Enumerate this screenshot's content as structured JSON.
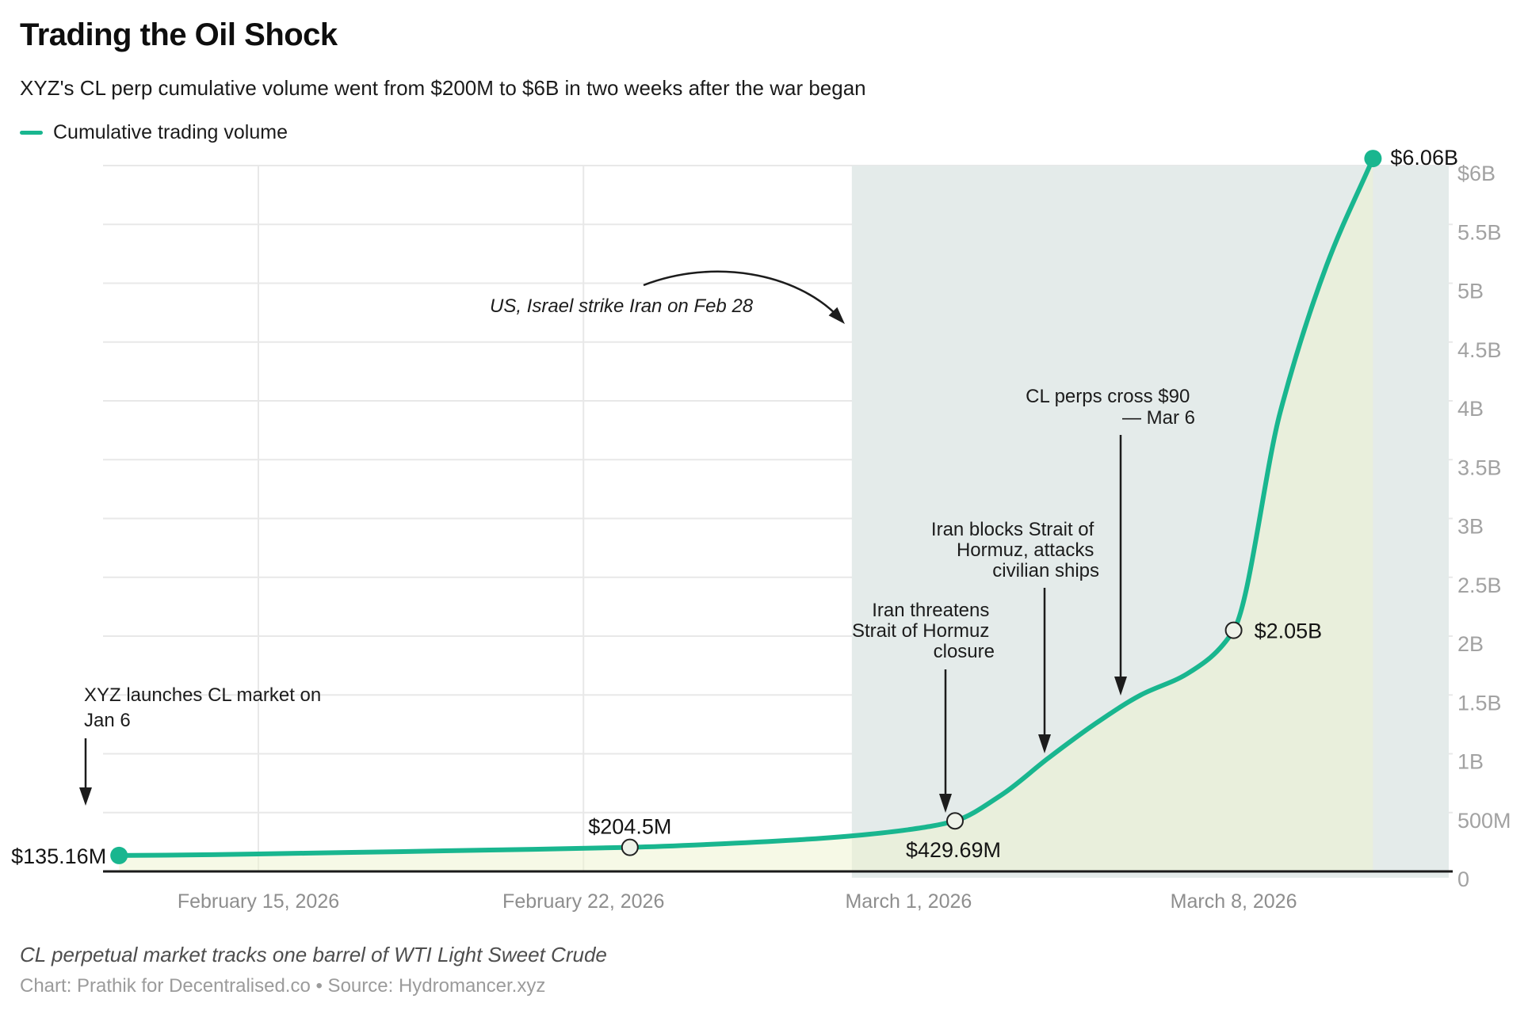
{
  "header": {
    "title": "Trading the Oil Shock",
    "subtitle": "XYZ's CL perp cumulative volume went from $200M to $6B in two weeks after the war began",
    "legend": {
      "label": "Cumulative trading volume"
    }
  },
  "chart_data": {
    "type": "line",
    "title": "Trading the Oil Shock",
    "xlabel": "",
    "ylabel": "",
    "grid": true,
    "legend_position": "top-left",
    "ylim": [
      0,
      6060000000
    ],
    "series": [
      {
        "name": "Cumulative trading volume",
        "color": "#19b68f",
        "points": [
          {
            "date": "2026-02-12",
            "value": 135160000
          },
          {
            "date": "2026-02-14",
            "value": 142000000
          },
          {
            "date": "2026-02-16",
            "value": 155000000
          },
          {
            "date": "2026-02-18",
            "value": 168000000
          },
          {
            "date": "2026-02-20",
            "value": 182000000
          },
          {
            "date": "2026-02-23",
            "value": 204500000
          },
          {
            "date": "2026-02-25",
            "value": 235000000
          },
          {
            "date": "2026-02-27",
            "value": 278000000
          },
          {
            "date": "2026-02-28",
            "value": 310000000
          },
          {
            "date": "2026-03-01",
            "value": 355000000
          },
          {
            "date": "2026-03-02",
            "value": 429690000
          },
          {
            "date": "2026-03-03",
            "value": 650000000
          },
          {
            "date": "2026-03-04",
            "value": 960000000
          },
          {
            "date": "2026-03-05",
            "value": 1250000000
          },
          {
            "date": "2026-03-06",
            "value": 1500000000
          },
          {
            "date": "2026-03-07",
            "value": 1680000000
          },
          {
            "date": "2026-03-08",
            "value": 2050000000
          },
          {
            "date": "2026-03-09",
            "value": 3900000000
          },
          {
            "date": "2026-03-10",
            "value": 5150000000
          },
          {
            "date": "2026-03-11",
            "value": 6060000000
          }
        ]
      }
    ],
    "x_ticks": [
      {
        "date": "2026-02-15",
        "label": "February 15, 2026"
      },
      {
        "date": "2026-02-22",
        "label": "February 22, 2026"
      },
      {
        "date": "2026-03-01",
        "label": "March 1, 2026"
      },
      {
        "date": "2026-03-08",
        "label": "March 8, 2026"
      }
    ],
    "y_ticks": [
      {
        "value": 6000000000,
        "label": "$6B"
      },
      {
        "value": 5500000000,
        "label": "5.5B"
      },
      {
        "value": 5000000000,
        "label": "5B"
      },
      {
        "value": 4500000000,
        "label": "4.5B"
      },
      {
        "value": 4000000000,
        "label": "4B"
      },
      {
        "value": 3500000000,
        "label": "3.5B"
      },
      {
        "value": 3000000000,
        "label": "3B"
      },
      {
        "value": 2500000000,
        "label": "2.5B"
      },
      {
        "value": 2000000000,
        "label": "2B"
      },
      {
        "value": 1500000000,
        "label": "1.5B"
      },
      {
        "value": 1000000000,
        "label": "1B"
      },
      {
        "value": 500000000,
        "label": "500M"
      },
      {
        "value": 0,
        "label": "0"
      }
    ],
    "shaded_region": {
      "start_date": "2026-02-28",
      "extends_to": "right edge of plot",
      "color": "#e4ebea"
    },
    "labeled_points": [
      {
        "date": "2026-02-12",
        "value": 135160000,
        "label": "$135.16M",
        "marker": "filled"
      },
      {
        "date": "2026-02-23",
        "value": 204500000,
        "label": "$204.5M",
        "marker": "open"
      },
      {
        "date": "2026-03-02",
        "value": 429690000,
        "label": "$429.69M",
        "marker": "open"
      },
      {
        "date": "2026-03-08",
        "value": 2050000000,
        "label": "$2.05B",
        "marker": "open"
      },
      {
        "date": "2026-03-11",
        "value": 6060000000,
        "label": "$6.06B",
        "marker": "filled"
      }
    ]
  },
  "annotations": {
    "xyz_launch": {
      "lines": [
        "XYZ launches CL market on",
        "Jan 6"
      ]
    },
    "us_israel_strike": {
      "text": "US, Israel strike Iran on Feb 28",
      "color": "#156a52"
    },
    "iran_threatens": {
      "lines": [
        "Iran threatens",
        "Strait of Hormuz",
        "closure"
      ]
    },
    "iran_blocks": {
      "lines": [
        "Iran blocks Strait of",
        "Hormuz, attacks",
        "civilian ships"
      ]
    },
    "cl_perps": {
      "lines": [
        "CL perps cross $90",
        "— Mar 6"
      ]
    }
  },
  "footer": {
    "note": "CL perpetual market tracks one barrel of WTI Light Sweet Crude",
    "credit": "Chart: Prathik for Decentralised.co • Source: Hydromancer.xyz"
  },
  "colors": {
    "line": "#19b68f",
    "shaded_region": "#e4ebea",
    "area_fill": "#eef3cd",
    "grid": "#e8e8e8",
    "axis": "#1a1a1a",
    "annotation_green": "#156a52"
  }
}
